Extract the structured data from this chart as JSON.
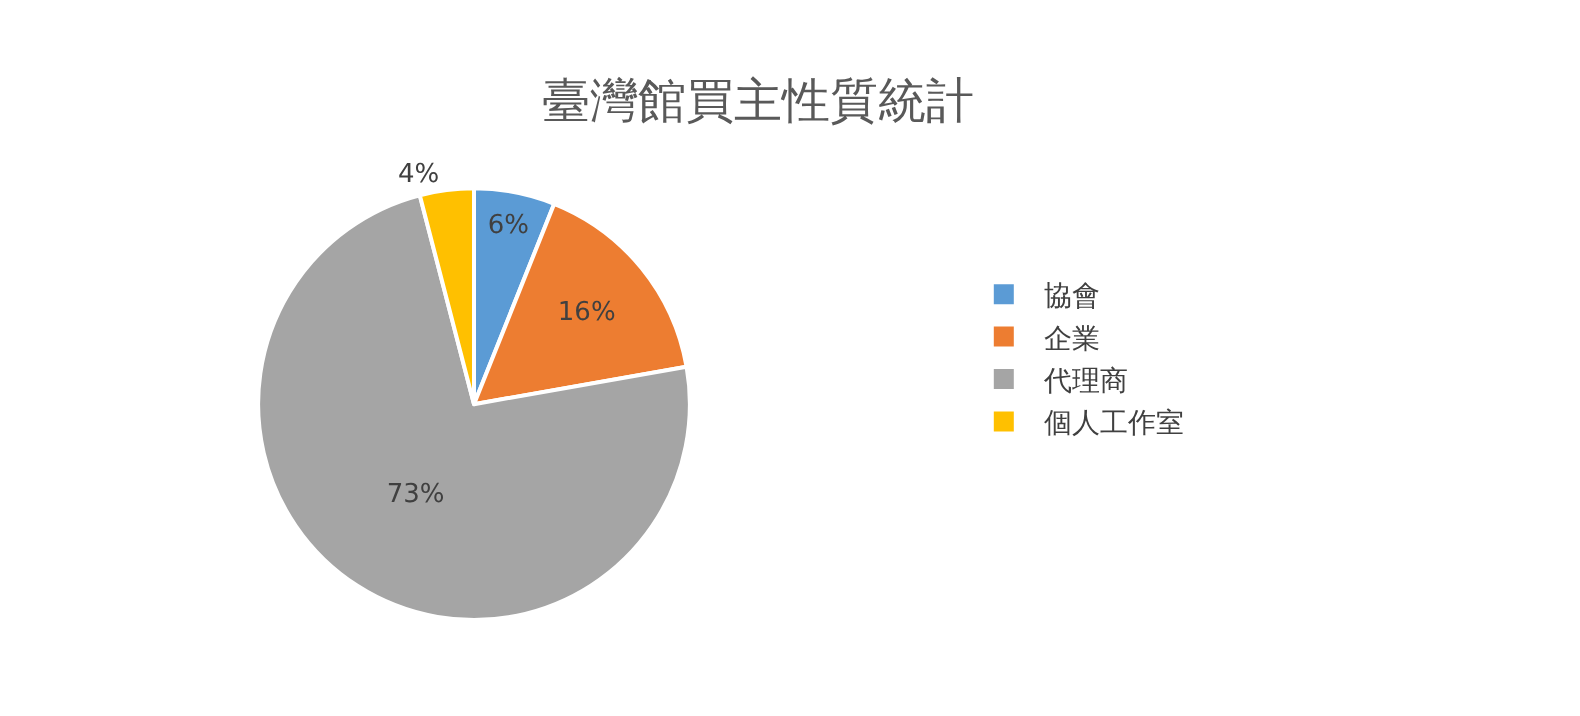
{
  "chart_data": {
    "type": "pie",
    "title": "臺灣館買主性質統計",
    "categories": [
      "協會",
      "企業",
      "代理商",
      "個人工作室"
    ],
    "values": [
      6,
      16,
      73,
      4
    ],
    "value_labels": [
      "6%",
      "16%",
      "73%",
      "4%"
    ],
    "colors": [
      "#5b9bd5",
      "#ed7d31",
      "#a5a5a5",
      "#ffc000"
    ],
    "legend": "right"
  }
}
